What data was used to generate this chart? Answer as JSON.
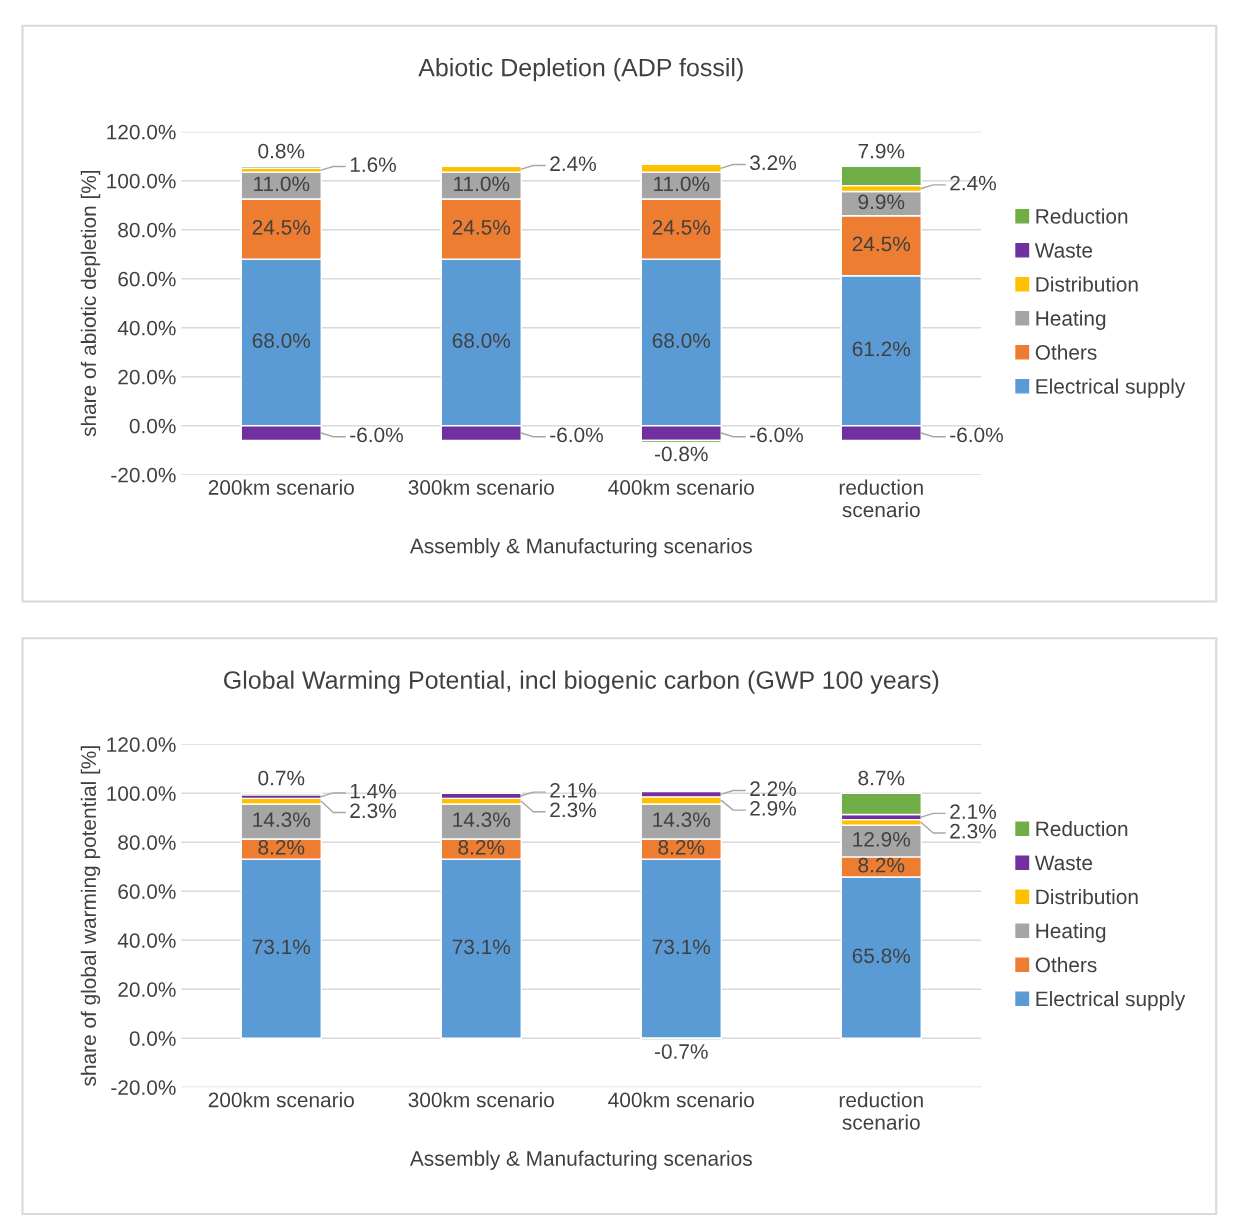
{
  "chart_data": [
    {
      "type": "bar",
      "title": "Abiotic Depletion (ADP fossil)",
      "xlabel": "Assembly & Manufacturing scenarios",
      "ylabel": "share of abiotic depletion [%]",
      "categories": [
        "200km scenario",
        "300km scenario",
        "400km scenario",
        "reduction scenario"
      ],
      "stacked": true,
      "grid": "y",
      "legend": "right",
      "ylim": [
        -20,
        120
      ],
      "yticks": [
        {
          "value": -20,
          "label": "-20.0%"
        },
        {
          "value": 0,
          "label": "0.0%"
        },
        {
          "value": 20,
          "label": "20.0%"
        },
        {
          "value": 40,
          "label": "40.0%"
        },
        {
          "value": 60,
          "label": "60.0%"
        },
        {
          "value": 80,
          "label": "80.0%"
        },
        {
          "value": 100,
          "label": "100.0%"
        },
        {
          "value": 120,
          "label": "120.0%"
        }
      ],
      "series": [
        {
          "name": "Electrical supply",
          "color": "#5b9bd5",
          "values": [
            68.0,
            68.0,
            68.0,
            61.2
          ],
          "value_labels": [
            "68.0%",
            "68.0%",
            "68.0%",
            "61.2%"
          ]
        },
        {
          "name": "Others",
          "color": "#ed7d31",
          "values": [
            24.5,
            24.5,
            24.5,
            24.5
          ],
          "value_labels": [
            "24.5%",
            "24.5%",
            "24.5%",
            "24.5%"
          ]
        },
        {
          "name": "Heating",
          "color": "#a5a5a5",
          "values": [
            11.0,
            11.0,
            11.0,
            9.9
          ],
          "value_labels": [
            "11.0%",
            "11.0%",
            "11.0%",
            "9.9%"
          ]
        },
        {
          "name": "Distribution",
          "color": "#ffc000",
          "values": [
            1.6,
            2.4,
            3.2,
            2.4
          ],
          "value_labels": [
            "1.6%",
            "2.4%",
            "3.2%",
            "2.4%"
          ]
        },
        {
          "name": "Waste",
          "color": "#7030a0",
          "values": [
            -6.0,
            -6.0,
            -6.0,
            -6.0
          ],
          "value_labels": [
            "-6.0%",
            "-6.0%",
            "-6.0%",
            "-6.0%"
          ]
        },
        {
          "name": "Reduction",
          "color": "#70ad47",
          "values": [
            0.8,
            null,
            -0.8,
            7.9
          ],
          "value_labels": [
            "0.8%",
            null,
            "-0.8%",
            "7.9%"
          ]
        }
      ]
    },
    {
      "type": "bar",
      "title": "Global Warming Potential, incl biogenic carbon (GWP 100 years)",
      "xlabel": "Assembly & Manufacturing scenarios",
      "ylabel": "share of global warming potential [%]",
      "categories": [
        "200km scenario",
        "300km scenario",
        "400km scenario",
        "reduction scenario"
      ],
      "stacked": true,
      "grid": "y",
      "legend": "right",
      "ylim": [
        -20,
        120
      ],
      "yticks": [
        {
          "value": -20,
          "label": "-20.0%"
        },
        {
          "value": 0,
          "label": "0.0%"
        },
        {
          "value": 20,
          "label": "20.0%"
        },
        {
          "value": 40,
          "label": "40.0%"
        },
        {
          "value": 60,
          "label": "60.0%"
        },
        {
          "value": 80,
          "label": "80.0%"
        },
        {
          "value": 100,
          "label": "100.0%"
        },
        {
          "value": 120,
          "label": "120.0%"
        }
      ],
      "series": [
        {
          "name": "Electrical supply",
          "color": "#5b9bd5",
          "values": [
            73.1,
            73.1,
            73.1,
            65.8
          ],
          "value_labels": [
            "73.1%",
            "73.1%",
            "73.1%",
            "65.8%"
          ]
        },
        {
          "name": "Others",
          "color": "#ed7d31",
          "values": [
            8.2,
            8.2,
            8.2,
            8.2
          ],
          "value_labels": [
            "8.2%",
            "8.2%",
            "8.2%",
            "8.2%"
          ]
        },
        {
          "name": "Heating",
          "color": "#a5a5a5",
          "values": [
            14.3,
            14.3,
            14.3,
            12.9
          ],
          "value_labels": [
            "14.3%",
            "14.3%",
            "14.3%",
            "12.9%"
          ]
        },
        {
          "name": "Distribution",
          "color": "#ffc000",
          "values": [
            2.3,
            2.3,
            2.9,
            2.3
          ],
          "value_labels": [
            "2.3%",
            "2.3%",
            "2.9%",
            "2.3%"
          ]
        },
        {
          "name": "Waste",
          "color": "#7030a0",
          "values": [
            1.4,
            2.1,
            2.2,
            2.1
          ],
          "value_labels": [
            "1.4%",
            "2.1%",
            "2.2%",
            "2.1%"
          ]
        },
        {
          "name": "Reduction",
          "color": "#70ad47",
          "values": [
            0.7,
            null,
            -0.7,
            8.7
          ],
          "value_labels": [
            "0.7%",
            null,
            "-0.7%",
            "8.7%"
          ]
        }
      ]
    }
  ]
}
